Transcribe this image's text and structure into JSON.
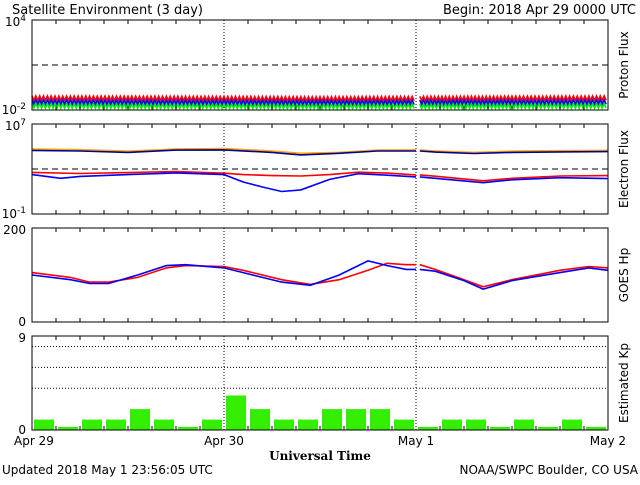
{
  "header": {
    "title": "Satellite Environment (3 day)",
    "begin": "Begin:  2018 Apr 29 0000 UTC"
  },
  "footer": {
    "updated": "Updated 2018 May  1 23:56:05 UTC",
    "credit": "NOAA/SWPC Boulder, CO USA"
  },
  "colors": {
    "red": "#ff0000",
    "blue": "#0000ff",
    "green": "#00ee00",
    "orange": "#ffa500",
    "navy": "#000099",
    "kp_bar": "#33ee00"
  },
  "chart_data": [
    {
      "type": "line",
      "name": "proton-flux",
      "ylabel": "Proton Flux",
      "yscale": "log",
      "ylim": [
        0.01,
        10000
      ],
      "yticks": [
        {
          "v": 10000,
          "base": "10",
          "exp": "4"
        },
        {
          "v": 0.01,
          "base": "10",
          "exp": "-2"
        }
      ],
      "threshold": 10,
      "gap": [
        2.0,
        2.02
      ],
      "series": [
        {
          "color": "red",
          "x": [
            0,
            0.5,
            1,
            1.5,
            2,
            2.5,
            3
          ],
          "values": [
            0.062,
            0.06,
            0.058,
            0.055,
            0.058,
            0.06,
            0.062
          ]
        },
        {
          "color": "blue",
          "x": [
            0,
            0.5,
            1,
            1.5,
            2,
            2.5,
            3
          ],
          "values": [
            0.034,
            0.033,
            0.032,
            0.031,
            0.032,
            0.033,
            0.034
          ]
        },
        {
          "color": "green",
          "x": [
            0,
            0.5,
            1,
            1.5,
            2,
            2.5,
            3
          ],
          "values": [
            0.019,
            0.018,
            0.018,
            0.017,
            0.018,
            0.018,
            0.019
          ]
        }
      ]
    },
    {
      "type": "line",
      "name": "electron-flux",
      "ylabel": "Electron Flux",
      "yscale": "log",
      "ylim": [
        0.1,
        10000000
      ],
      "yticks": [
        {
          "v": 10000000,
          "base": "10",
          "exp": "7"
        },
        {
          "v": 0.1,
          "base": "10",
          "exp": "-1"
        }
      ],
      "threshold": 1000,
      "gap": [
        2.0,
        2.02
      ],
      "series": [
        {
          "color": "orange",
          "x": [
            0,
            0.25,
            0.5,
            0.75,
            1.0,
            1.25,
            1.4,
            1.6,
            1.8,
            2.0,
            2.1,
            2.3,
            2.5,
            2.75,
            3.0
          ],
          "values": [
            60000,
            52000,
            38000,
            60000,
            65000,
            40000,
            25000,
            30000,
            48000,
            50000,
            40000,
            30000,
            38000,
            42000,
            45000
          ]
        },
        {
          "color": "navy",
          "x": [
            0,
            0.25,
            0.5,
            0.75,
            1.0,
            1.25,
            1.4,
            1.6,
            1.8,
            2.0,
            2.1,
            2.3,
            2.5,
            2.75,
            3.0
          ],
          "values": [
            45000,
            40000,
            30000,
            48000,
            50000,
            30000,
            18000,
            25000,
            40000,
            40000,
            32000,
            24000,
            30000,
            33000,
            35000
          ]
        },
        {
          "color": "red",
          "x": [
            0,
            0.25,
            0.5,
            0.75,
            1.0,
            1.1,
            1.25,
            1.4,
            1.55,
            1.7,
            1.85,
            2.0,
            2.1,
            2.35,
            2.5,
            2.75,
            3.0
          ],
          "values": [
            500,
            400,
            480,
            600,
            420,
            320,
            260,
            240,
            320,
            520,
            430,
            300,
            230,
            90,
            150,
            240,
            260
          ]
        },
        {
          "color": "blue",
          "x": [
            0,
            0.15,
            0.25,
            0.5,
            0.75,
            1.0,
            1.1,
            1.2,
            1.3,
            1.4,
            1.55,
            1.7,
            1.85,
            2.0,
            2.1,
            2.35,
            2.5,
            2.75,
            3.0
          ],
          "values": [
            320,
            150,
            220,
            320,
            450,
            320,
            70,
            25,
            10,
            14,
            120,
            380,
            280,
            200,
            150,
            60,
            110,
            170,
            140
          ]
        }
      ]
    },
    {
      "type": "line",
      "name": "goes-hp",
      "ylabel": "GOES Hp",
      "ylim": [
        0,
        200
      ],
      "yticks": [
        {
          "v": 200,
          "label": "200"
        },
        {
          "v": 0,
          "label": "0"
        }
      ],
      "gap": [
        2.0,
        2.02
      ],
      "series": [
        {
          "color": "red",
          "x": [
            0,
            0.2,
            0.3,
            0.4,
            0.55,
            0.7,
            0.8,
            1.0,
            1.1,
            1.3,
            1.45,
            1.6,
            1.75,
            1.85,
            1.95,
            2.0,
            2.1,
            2.25,
            2.35,
            2.5,
            2.75,
            2.9,
            3.0
          ],
          "values": [
            105,
            95,
            85,
            85,
            95,
            115,
            120,
            118,
            110,
            90,
            80,
            90,
            110,
            125,
            122,
            122,
            112,
            90,
            75,
            90,
            110,
            118,
            115
          ]
        },
        {
          "color": "blue",
          "x": [
            0,
            0.2,
            0.3,
            0.4,
            0.55,
            0.7,
            0.8,
            1.0,
            1.1,
            1.3,
            1.45,
            1.6,
            1.75,
            1.85,
            1.95,
            2.0,
            2.1,
            2.25,
            2.35,
            2.5,
            2.75,
            2.9,
            3.0
          ],
          "values": [
            100,
            90,
            82,
            82,
            100,
            120,
            122,
            115,
            105,
            85,
            78,
            100,
            130,
            120,
            112,
            112,
            108,
            88,
            70,
            88,
            105,
            115,
            110
          ]
        }
      ]
    },
    {
      "type": "bar",
      "name": "estimated-kp",
      "ylabel": "Estimated Kp",
      "ylim": [
        0,
        9
      ],
      "yticks": [
        {
          "v": 9,
          "label": "9"
        },
        {
          "v": 0,
          "label": "0"
        }
      ],
      "gridlines": [
        4,
        6,
        8
      ],
      "values": [
        1,
        0.3,
        1,
        1,
        2,
        1,
        0.3,
        1,
        3.3,
        2,
        1,
        1,
        2,
        2,
        2,
        1,
        0.3,
        1,
        1,
        0.3,
        1,
        0.3,
        1,
        0.3
      ]
    }
  ],
  "time_axis": {
    "xlabel": "Universal Time",
    "range": [
      0,
      3
    ],
    "ticks": [
      {
        "day": 0,
        "label": "Apr 29"
      },
      {
        "day": 1,
        "label": "Apr 30"
      },
      {
        "day": 2,
        "label": "May 1"
      },
      {
        "day": 3,
        "label": "May 2"
      }
    ]
  }
}
